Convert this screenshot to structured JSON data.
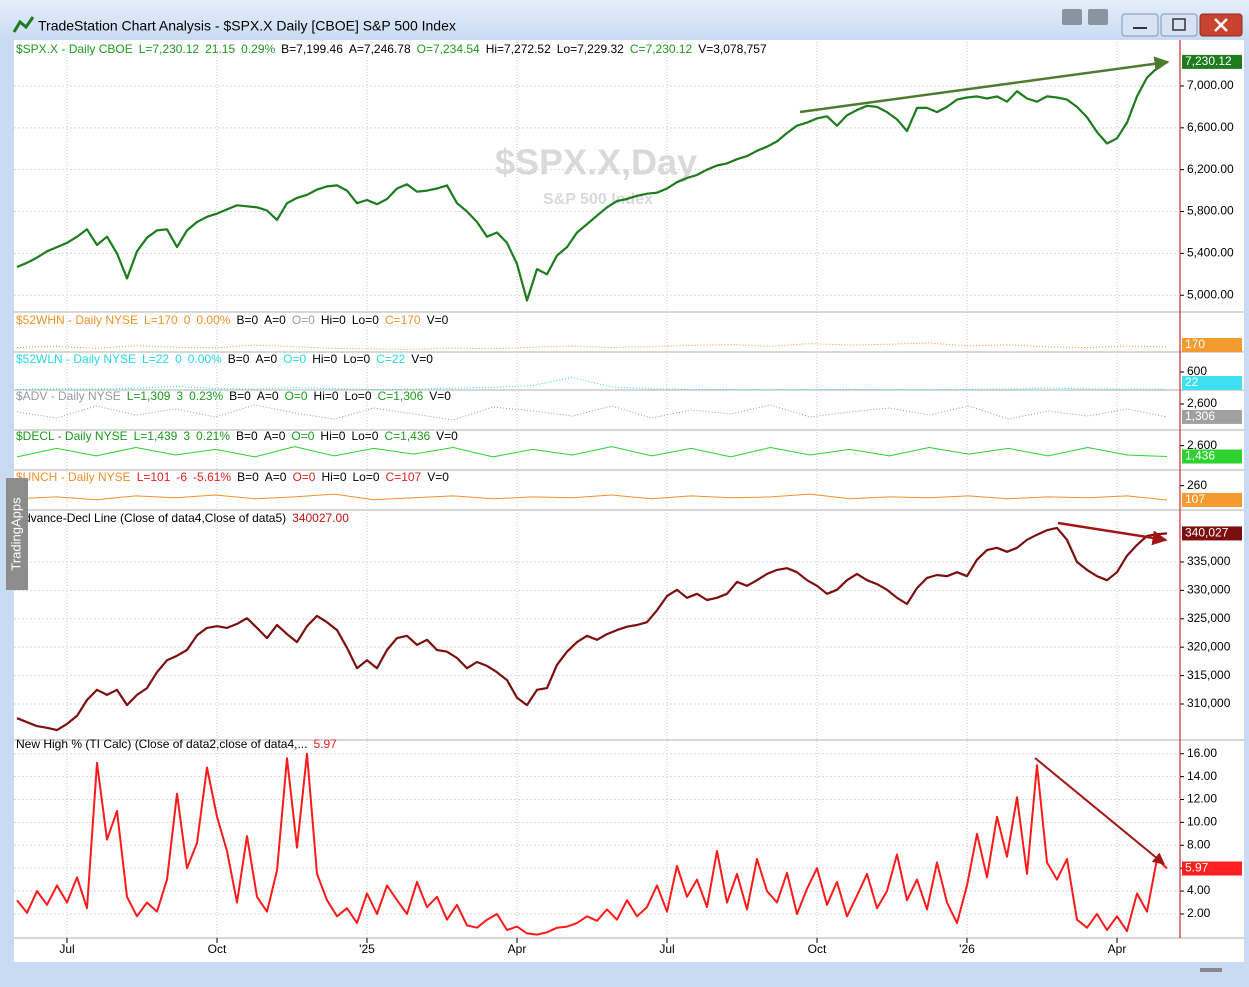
{
  "window": {
    "title": "TradeStation Chart Analysis - $SPX.X Daily [CBOE] S&P 500 Index",
    "side_tab": "TradingApps"
  },
  "chart_data": [
    {
      "type": "line",
      "watermark": "$SPX.X,Day",
      "watermark_subtitle": "S&P 500 Index",
      "header": [
        {
          "text": "$SPX.X - Daily  CBOE",
          "color": "#1c9a1c"
        },
        {
          "text": "L=7,230.12",
          "color": "#1c9a1c"
        },
        {
          "text": "21.15",
          "color": "#1c9a1c"
        },
        {
          "text": "0.29%",
          "color": "#1c9a1c"
        },
        {
          "text": "B=7,199.46",
          "color": "#000000"
        },
        {
          "text": "A=7,246.78",
          "color": "#000000"
        },
        {
          "text": "O=7,234.54",
          "color": "#1c9a1c"
        },
        {
          "text": "Hi=7,272.52",
          "color": "#000000"
        },
        {
          "text": "Lo=7,229.32",
          "color": "#000000"
        },
        {
          "text": "C=7,230.12",
          "color": "#1c9a1c"
        },
        {
          "text": "V=3,078,757",
          "color": "#000000"
        }
      ],
      "categories": [
        null,
        null,
        null,
        null,
        null,
        "Jul",
        null,
        null,
        null,
        null,
        null,
        null,
        null,
        null,
        null,
        null,
        null,
        null,
        null,
        null,
        "Oct",
        null,
        null,
        null,
        null,
        null,
        null,
        null,
        null,
        null,
        null,
        null,
        null,
        null,
        null,
        "'25",
        null,
        null,
        null,
        null,
        null,
        null,
        null,
        null,
        null,
        null,
        null,
        null,
        null,
        null,
        "Apr",
        null,
        null,
        null,
        null,
        null,
        null,
        null,
        null,
        null,
        null,
        null,
        null,
        null,
        null,
        "Jul",
        null,
        null,
        null,
        null,
        null,
        null,
        null,
        null,
        null,
        null,
        null,
        null,
        null,
        null,
        "Oct",
        null,
        null,
        null,
        null,
        null,
        null,
        null,
        null,
        null,
        null,
        null,
        null,
        null,
        null,
        "'26",
        null,
        null,
        null,
        null,
        null,
        null,
        null,
        null,
        null,
        null,
        null,
        null,
        null,
        null,
        "Apr",
        null,
        null,
        null,
        null,
        null
      ],
      "values": [
        5270,
        5310,
        5360,
        5420,
        5460,
        5500,
        5560,
        5630,
        5480,
        5560,
        5400,
        5160,
        5420,
        5550,
        5620,
        5630,
        5460,
        5620,
        5700,
        5750,
        5780,
        5820,
        5860,
        5850,
        5840,
        5810,
        5720,
        5880,
        5930,
        5960,
        6010,
        6040,
        6050,
        6000,
        5880,
        5910,
        5870,
        5920,
        6020,
        6060,
        5990,
        6000,
        6020,
        6050,
        5880,
        5800,
        5700,
        5560,
        5600,
        5500,
        5300,
        4950,
        5250,
        5200,
        5380,
        5460,
        5600,
        5680,
        5760,
        5840,
        5900,
        5920,
        5950,
        5970,
        5980,
        6020,
        6080,
        6120,
        6150,
        6200,
        6240,
        6260,
        6300,
        6330,
        6380,
        6420,
        6470,
        6550,
        6620,
        6650,
        6690,
        6710,
        6620,
        6720,
        6770,
        6810,
        6800,
        6750,
        6680,
        6570,
        6790,
        6790,
        6750,
        6800,
        6870,
        6890,
        6900,
        6880,
        6900,
        6850,
        6950,
        6880,
        6850,
        6900,
        6890,
        6870,
        6800,
        6700,
        6560,
        6450,
        6500,
        6650,
        6900,
        7080,
        7170,
        7230
      ],
      "color": "#1e7b1e",
      "line_width": 2.2,
      "ylim": [
        4840,
        7420
      ],
      "yticks": [
        {
          "value": 5000,
          "label": "5,000.00"
        },
        {
          "value": 5400,
          "label": "5,400.00"
        },
        {
          "value": 5800,
          "label": "5,800.00"
        },
        {
          "value": 6200,
          "label": "6,200.00"
        },
        {
          "value": 6600,
          "label": "6,600.00"
        },
        {
          "value": 7000,
          "label": "7,000.00"
        }
      ],
      "grid": true,
      "last_label": "7,230.12",
      "last_label_color": "#1e7b1e"
    },
    {
      "type": "line",
      "header": [
        {
          "text": "$52WHN - Daily  NYSE",
          "color": "#f0902a"
        },
        {
          "text": "L=170",
          "color": "#f0902a"
        },
        {
          "text": "0",
          "color": "#f0902a"
        },
        {
          "text": "0.00%",
          "color": "#f0902a"
        },
        {
          "text": "B=0",
          "color": "#000000"
        },
        {
          "text": "A=0",
          "color": "#000000"
        },
        {
          "text": "O=0",
          "color": "#999999"
        },
        {
          "text": "Hi=0",
          "color": "#000000"
        },
        {
          "text": "Lo=0",
          "color": "#000000"
        },
        {
          "text": "C=170",
          "color": "#f0902a"
        },
        {
          "text": "V=0",
          "color": "#000000"
        }
      ],
      "values": [
        150,
        190,
        120,
        210,
        160,
        140,
        230,
        180,
        120,
        100,
        90,
        130,
        110,
        160,
        200,
        150,
        180,
        220,
        250,
        190,
        280,
        230,
        260,
        300,
        200,
        240,
        170,
        150,
        200,
        170
      ],
      "color": "#f0902a",
      "line_style": "dotted",
      "ylim": [
        0,
        1000
      ],
      "last_label": "170",
      "last_label_color": "#f39b2e"
    },
    {
      "type": "line",
      "header": [
        {
          "text": "$52WLN - Daily  NYSE",
          "color": "#22d8e8"
        },
        {
          "text": "L=22",
          "color": "#22d8e8"
        },
        {
          "text": "0",
          "color": "#22d8e8"
        },
        {
          "text": "0.00%",
          "color": "#22d8e8"
        },
        {
          "text": "B=0",
          "color": "#000000"
        },
        {
          "text": "A=0",
          "color": "#000000"
        },
        {
          "text": "O=0",
          "color": "#22d8e8"
        },
        {
          "text": "Hi=0",
          "color": "#000000"
        },
        {
          "text": "Lo=0",
          "color": "#000000"
        },
        {
          "text": "C=22",
          "color": "#22d8e8"
        },
        {
          "text": "V=0",
          "color": "#000000"
        }
      ],
      "values": [
        20,
        40,
        30,
        60,
        120,
        50,
        30,
        80,
        40,
        20,
        30,
        60,
        90,
        150,
        420,
        100,
        40,
        20,
        15,
        10,
        12,
        20,
        15,
        10,
        25,
        30,
        60,
        40,
        30,
        22
      ],
      "color": "#22d8e8",
      "line_style": "dotted",
      "ylim": [
        0,
        1000
      ],
      "yticks": [
        600
      ],
      "last_label": "22",
      "last_label_color": "#3ce0f0"
    },
    {
      "type": "line",
      "header": [
        {
          "text": "$ADV - Daily  NYSE",
          "color": "#999999"
        },
        {
          "text": "L=1,309",
          "color": "#1c9a1c"
        },
        {
          "text": "3",
          "color": "#1c9a1c"
        },
        {
          "text": "0.23%",
          "color": "#1c9a1c"
        },
        {
          "text": "B=0",
          "color": "#000000"
        },
        {
          "text": "A=0",
          "color": "#000000"
        },
        {
          "text": "O=0",
          "color": "#1c9a1c"
        },
        {
          "text": "Hi=0",
          "color": "#000000"
        },
        {
          "text": "Lo=0",
          "color": "#000000"
        },
        {
          "text": "C=1,306",
          "color": "#1c9a1c"
        },
        {
          "text": "V=0",
          "color": "#000000"
        }
      ],
      "values": [
        1800,
        1200,
        2400,
        1500,
        2100,
        1300,
        2500,
        1700,
        1100,
        2200,
        1600,
        1000,
        2300,
        1900,
        1400,
        2400,
        1200,
        2000,
        1600,
        2500,
        1300,
        1800,
        2200,
        1500,
        2400,
        1100,
        1900,
        1400,
        2100,
        1306
      ],
      "color": "#999999",
      "line_style": "dotted",
      "ylim": [
        0,
        3200
      ],
      "yticks": [
        {
          "value": 2600,
          "label": "2,600"
        }
      ],
      "last_label": "1,306",
      "last_label_color": "#a0a0a0"
    },
    {
      "type": "line",
      "header": [
        {
          "text": "$DECL - Daily  NYSE",
          "color": "#1c9a1c"
        },
        {
          "text": "L=1,439",
          "color": "#1c9a1c"
        },
        {
          "text": "3",
          "color": "#1c9a1c"
        },
        {
          "text": "0.21%",
          "color": "#1c9a1c"
        },
        {
          "text": "B=0",
          "color": "#000000"
        },
        {
          "text": "A=0",
          "color": "#000000"
        },
        {
          "text": "O=0",
          "color": "#1c9a1c"
        },
        {
          "text": "Hi=0",
          "color": "#000000"
        },
        {
          "text": "Lo=0",
          "color": "#000000"
        },
        {
          "text": "C=1,436",
          "color": "#1c9a1c"
        },
        {
          "text": "V=0",
          "color": "#000000"
        }
      ],
      "values": [
        1400,
        2300,
        1500,
        2400,
        1600,
        2200,
        1400,
        2500,
        1500,
        2300,
        1700,
        2400,
        1400,
        2200,
        1600,
        2500,
        1500,
        2300,
        1400,
        2400,
        1600,
        2200,
        1500,
        2400,
        1700,
        2300,
        1500,
        2400,
        1600,
        1436
      ],
      "color": "#2ed12e",
      "ylim": [
        0,
        3200
      ],
      "yticks": [
        {
          "value": 2600,
          "label": "2,600"
        }
      ],
      "last_label": "1,436",
      "last_label_color": "#2ed12e"
    },
    {
      "type": "line",
      "header": [
        {
          "text": "$UNCH - Daily  NYSE",
          "color": "#f0902a"
        },
        {
          "text": "L=101",
          "color": "#e02020"
        },
        {
          "text": "-6",
          "color": "#e02020"
        },
        {
          "text": "-5.61%",
          "color": "#e02020"
        },
        {
          "text": "B=0",
          "color": "#000000"
        },
        {
          "text": "A=0",
          "color": "#000000"
        },
        {
          "text": "O=0",
          "color": "#e02020"
        },
        {
          "text": "Hi=0",
          "color": "#000000"
        },
        {
          "text": "Lo=0",
          "color": "#000000"
        },
        {
          "text": "C=107",
          "color": "#e02020"
        },
        {
          "text": "V=0",
          "color": "#000000"
        }
      ],
      "values": [
        120,
        140,
        110,
        150,
        130,
        160,
        120,
        140,
        170,
        110,
        130,
        150,
        120,
        140,
        130,
        160,
        120,
        150,
        130,
        140,
        170,
        120,
        140,
        130,
        150,
        120,
        140,
        130,
        150,
        107
      ],
      "color": "#f0902a",
      "ylim": [
        0,
        320
      ],
      "yticks": [
        260
      ],
      "last_label": "107",
      "last_label_color": "#f39b2e"
    },
    {
      "type": "line",
      "header": [
        {
          "text": "Advance-Decl Line (Close of data4,Close of data5)",
          "color": "#000000"
        },
        {
          "text": "340027.00",
          "color": "#c01010"
        }
      ],
      "values": [
        307500,
        306800,
        306100,
        305800,
        305400,
        306500,
        307900,
        310700,
        312500,
        311600,
        312500,
        309800,
        311600,
        312800,
        315600,
        317700,
        318500,
        319500,
        322100,
        323400,
        323700,
        323400,
        324100,
        325100,
        323400,
        321600,
        323900,
        322300,
        320900,
        323700,
        325500,
        324400,
        323000,
        319900,
        316300,
        317700,
        316300,
        319500,
        321600,
        322000,
        320400,
        321300,
        319500,
        319200,
        318100,
        316300,
        317400,
        316700,
        315600,
        314200,
        311100,
        309800,
        312500,
        312800,
        316900,
        319200,
        320900,
        322000,
        321300,
        322300,
        323000,
        323600,
        323900,
        324400,
        326500,
        329000,
        330100,
        328700,
        329400,
        328300,
        328700,
        329400,
        331500,
        330800,
        331800,
        332900,
        333600,
        333900,
        333200,
        331800,
        330800,
        329400,
        330100,
        331800,
        332900,
        331800,
        331100,
        330100,
        328700,
        327600,
        330400,
        332200,
        332700,
        332500,
        333200,
        332500,
        335400,
        337100,
        337500,
        336800,
        337500,
        338900,
        339800,
        340600,
        341000,
        338900,
        335000,
        333600,
        332500,
        331800,
        333200,
        336100,
        338000,
        339600,
        339900,
        340027
      ],
      "color": "#7b0f0f",
      "line_width": 2.2,
      "ylim": [
        303660,
        343800
      ],
      "yticks": [
        {
          "value": 310000,
          "label": "310,000"
        },
        {
          "value": 315000,
          "label": "315,000"
        },
        {
          "value": 320000,
          "label": "320,000"
        },
        {
          "value": 325000,
          "label": "325,000"
        },
        {
          "value": 330000,
          "label": "330,000"
        },
        {
          "value": 335000,
          "label": "335,000"
        }
      ],
      "grid": true,
      "last_label": "340,027",
      "last_label_color": "#7b0f0f"
    },
    {
      "type": "line",
      "header": [
        {
          "text": "New High % (TI Calc) (Close of data2,close of data4,...",
          "color": "#000000"
        },
        {
          "text": "5.97",
          "color": "#e02020"
        }
      ],
      "values": [
        3.2,
        2.1,
        4.0,
        2.8,
        4.5,
        3.0,
        5.2,
        2.5,
        15.2,
        8.5,
        11.0,
        3.5,
        1.8,
        3.0,
        2.2,
        5.0,
        12.5,
        6.0,
        8.2,
        14.8,
        10.5,
        7.5,
        3.0,
        8.8,
        3.5,
        2.2,
        5.8,
        15.6,
        7.8,
        16.0,
        5.5,
        3.2,
        1.8,
        2.5,
        1.2,
        3.8,
        2.0,
        4.5,
        3.2,
        2.0,
        4.8,
        2.6,
        3.5,
        1.5,
        2.8,
        1.0,
        0.8,
        1.5,
        2.0,
        0.6,
        0.9,
        0.3,
        0.2,
        0.4,
        0.8,
        0.9,
        1.2,
        1.8,
        1.4,
        2.4,
        1.5,
        3.2,
        1.8,
        2.6,
        4.5,
        2.2,
        6.2,
        3.5,
        5.0,
        2.6,
        7.5,
        3.0,
        5.5,
        2.4,
        6.8,
        4.0,
        3.0,
        5.6,
        2.0,
        4.2,
        6.0,
        2.8,
        4.8,
        1.8,
        3.6,
        5.5,
        2.5,
        4.0,
        7.2,
        3.2,
        5.0,
        2.4,
        6.5,
        3.0,
        1.2,
        4.5,
        9.0,
        5.2,
        10.5,
        7.0,
        12.2,
        5.5,
        15.0,
        6.5,
        5.0,
        6.8,
        1.5,
        0.8,
        2.0,
        0.6,
        1.8,
        0.5,
        3.8,
        2.2,
        6.8,
        5.97
      ],
      "color": "#ff1a1a",
      "line_width": 2,
      "ylim": [
        -0.1,
        17.2
      ],
      "yticks": [
        {
          "value": 2,
          "label": "2.00"
        },
        {
          "value": 4,
          "label": "4.00"
        },
        {
          "value": 6,
          "label": "6.00"
        },
        {
          "value": 8,
          "label": "8.00"
        },
        {
          "value": 10,
          "label": "10.00"
        },
        {
          "value": 12,
          "label": "12.00"
        },
        {
          "value": 14,
          "label": "14.00"
        },
        {
          "value": 16,
          "label": "16.00"
        }
      ],
      "grid": true,
      "last_label": "5.97",
      "last_label_color": "#ff2020"
    }
  ]
}
